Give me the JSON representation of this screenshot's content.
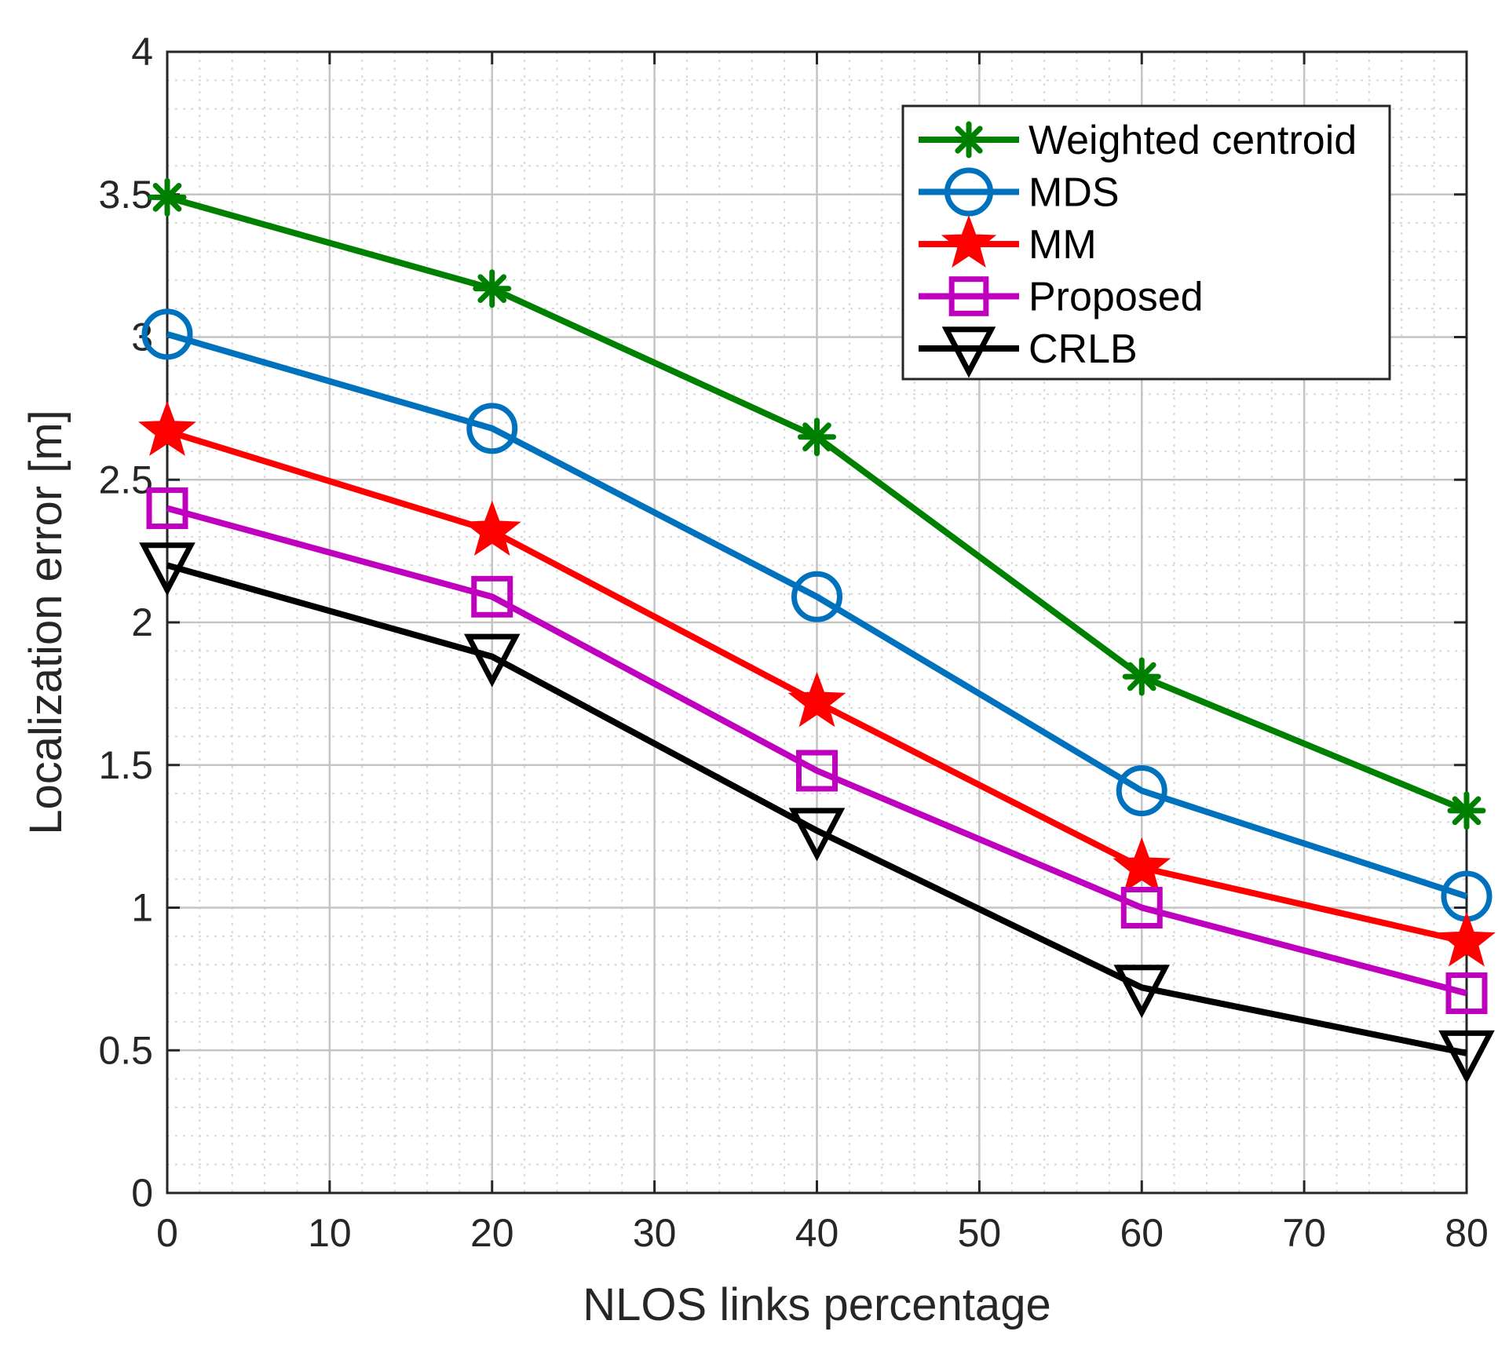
{
  "chart_data": {
    "type": "line",
    "title": "",
    "xlabel": "NLOS links percentage",
    "ylabel": "Localization error [m]",
    "xlim": [
      0,
      80
    ],
    "ylim": [
      0,
      4
    ],
    "x_ticks": [
      0,
      10,
      20,
      30,
      40,
      50,
      60,
      70,
      80
    ],
    "y_ticks": [
      0,
      0.5,
      1,
      1.5,
      2,
      2.5,
      3,
      3.5,
      4
    ],
    "x_tick_labels": [
      "0",
      "10",
      "20",
      "30",
      "40",
      "50",
      "60",
      "70",
      "80"
    ],
    "y_tick_labels": [
      "0",
      "0.5",
      "1",
      "1.5",
      "2",
      "2.5",
      "3",
      "3.5",
      "4"
    ],
    "grid": true,
    "minor_grid": true,
    "legend_position": "top-right",
    "x": [
      0,
      20,
      40,
      60,
      80
    ],
    "series": [
      {
        "name": "Weighted centroid",
        "color": "#008000",
        "marker": "asterisk",
        "values": [
          3.49,
          3.17,
          2.65,
          1.81,
          1.34
        ]
      },
      {
        "name": "MDS",
        "color": "#0072BD",
        "marker": "circle",
        "values": [
          3.01,
          2.68,
          2.09,
          1.41,
          1.04
        ]
      },
      {
        "name": "MM",
        "color": "#FF0000",
        "marker": "star",
        "values": [
          2.67,
          2.32,
          1.72,
          1.14,
          0.88
        ]
      },
      {
        "name": "Proposed",
        "color": "#BF00BF",
        "marker": "square",
        "values": [
          2.4,
          2.09,
          1.48,
          1.0,
          0.7
        ]
      },
      {
        "name": "CRLB",
        "color": "#000000",
        "marker": "triangle-down",
        "values": [
          2.2,
          1.88,
          1.27,
          0.72,
          0.49
        ]
      }
    ]
  }
}
